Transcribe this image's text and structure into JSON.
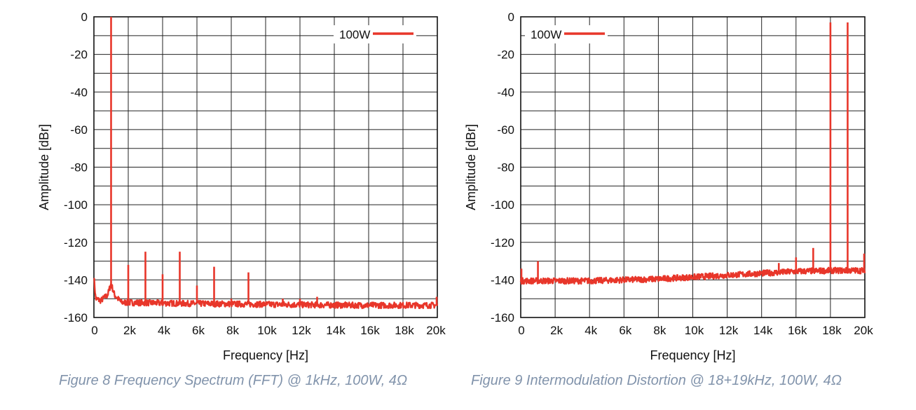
{
  "colors": {
    "series": "#e8362a",
    "grid": "#222222",
    "caption": "#8193ab"
  },
  "chart_data": [
    {
      "type": "line",
      "title": "",
      "xlabel": "Frequency [Hz]",
      "ylabel": "Amplitude [dBr]",
      "xlim": [
        0,
        20000
      ],
      "ylim": [
        -160,
        0
      ],
      "x_ticks": [
        0,
        2000,
        4000,
        6000,
        8000,
        10000,
        12000,
        14000,
        16000,
        18000,
        20000
      ],
      "x_tick_labels": [
        "0",
        "2k",
        "4k",
        "6k",
        "8k",
        "10k",
        "12k",
        "14k",
        "16k",
        "18k",
        "20k"
      ],
      "y_ticks": [
        0,
        -20,
        -40,
        -60,
        -80,
        -100,
        -120,
        -140,
        -160
      ],
      "y_tick_labels": [
        "0",
        "-20",
        "-40",
        "-60",
        "-80",
        "-100",
        "-120",
        "-140",
        "-160"
      ],
      "grid": true,
      "legend": {
        "placement": "top-right",
        "entries": [
          "100W"
        ]
      },
      "series": [
        {
          "name": "100W",
          "noise_floor": [
            [
              0,
              -138
            ],
            [
              100,
              -150
            ],
            [
              400,
              -151
            ],
            [
              800,
              -148
            ],
            [
              1000,
              -142
            ],
            [
              1200,
              -148
            ],
            [
              1600,
              -152
            ],
            [
              5000,
              -152.5
            ],
            [
              10000,
              -153
            ],
            [
              15000,
              -153.5
            ],
            [
              20000,
              -153.5
            ]
          ],
          "peaks": [
            [
              1000,
              0
            ],
            [
              2000,
              -132
            ],
            [
              3000,
              -125
            ],
            [
              4000,
              -137
            ],
            [
              5000,
              -125
            ],
            [
              6000,
              -143
            ],
            [
              7000,
              -133
            ],
            [
              9000,
              -136
            ],
            [
              8000,
              -150
            ],
            [
              11000,
              -150
            ],
            [
              12000,
              -150
            ],
            [
              13000,
              -149
            ],
            [
              20000,
              -149
            ]
          ]
        }
      ],
      "caption": "Figure 8 Frequency Spectrum (FFT) @ 1kHz, 100W, 4Ω"
    },
    {
      "type": "line",
      "title": "",
      "xlabel": "Frequency [Hz]",
      "ylabel": "Amplitude [dBr]",
      "xlim": [
        0,
        20000
      ],
      "ylim": [
        -160,
        0
      ],
      "x_ticks": [
        0,
        2000,
        4000,
        6000,
        8000,
        10000,
        12000,
        14000,
        16000,
        18000,
        20000
      ],
      "x_tick_labels": [
        "0",
        "2k",
        "4k",
        "6k",
        "8k",
        "10k",
        "12k",
        "14k",
        "16k",
        "18k",
        "20k"
      ],
      "y_ticks": [
        0,
        -20,
        -40,
        -60,
        -80,
        -100,
        -120,
        -140,
        -160
      ],
      "y_tick_labels": [
        "0",
        "-20",
        "-40",
        "-60",
        "-80",
        "-100",
        "-120",
        "-140",
        "-160"
      ],
      "grid": true,
      "legend": {
        "placement": "top-left",
        "entries": [
          "100W"
        ]
      },
      "series": [
        {
          "name": "100W",
          "noise_floor": [
            [
              0,
              -140.5
            ],
            [
              4000,
              -140.5
            ],
            [
              8000,
              -139.5
            ],
            [
              10000,
              -138.5
            ],
            [
              12000,
              -137.5
            ],
            [
              14000,
              -136.5
            ],
            [
              16000,
              -135.5
            ],
            [
              18000,
              -135
            ],
            [
              20000,
              -135
            ]
          ],
          "peaks": [
            [
              0,
              -134
            ],
            [
              1000,
              -130
            ],
            [
              15000,
              -131
            ],
            [
              16000,
              -128
            ],
            [
              17000,
              -123
            ],
            [
              18000,
              -3
            ],
            [
              19000,
              -3
            ],
            [
              20000,
              -126
            ]
          ]
        }
      ],
      "caption": "Figure 9 Intermodulation Distortion @ 18+19kHz, 100W, 4Ω"
    }
  ]
}
